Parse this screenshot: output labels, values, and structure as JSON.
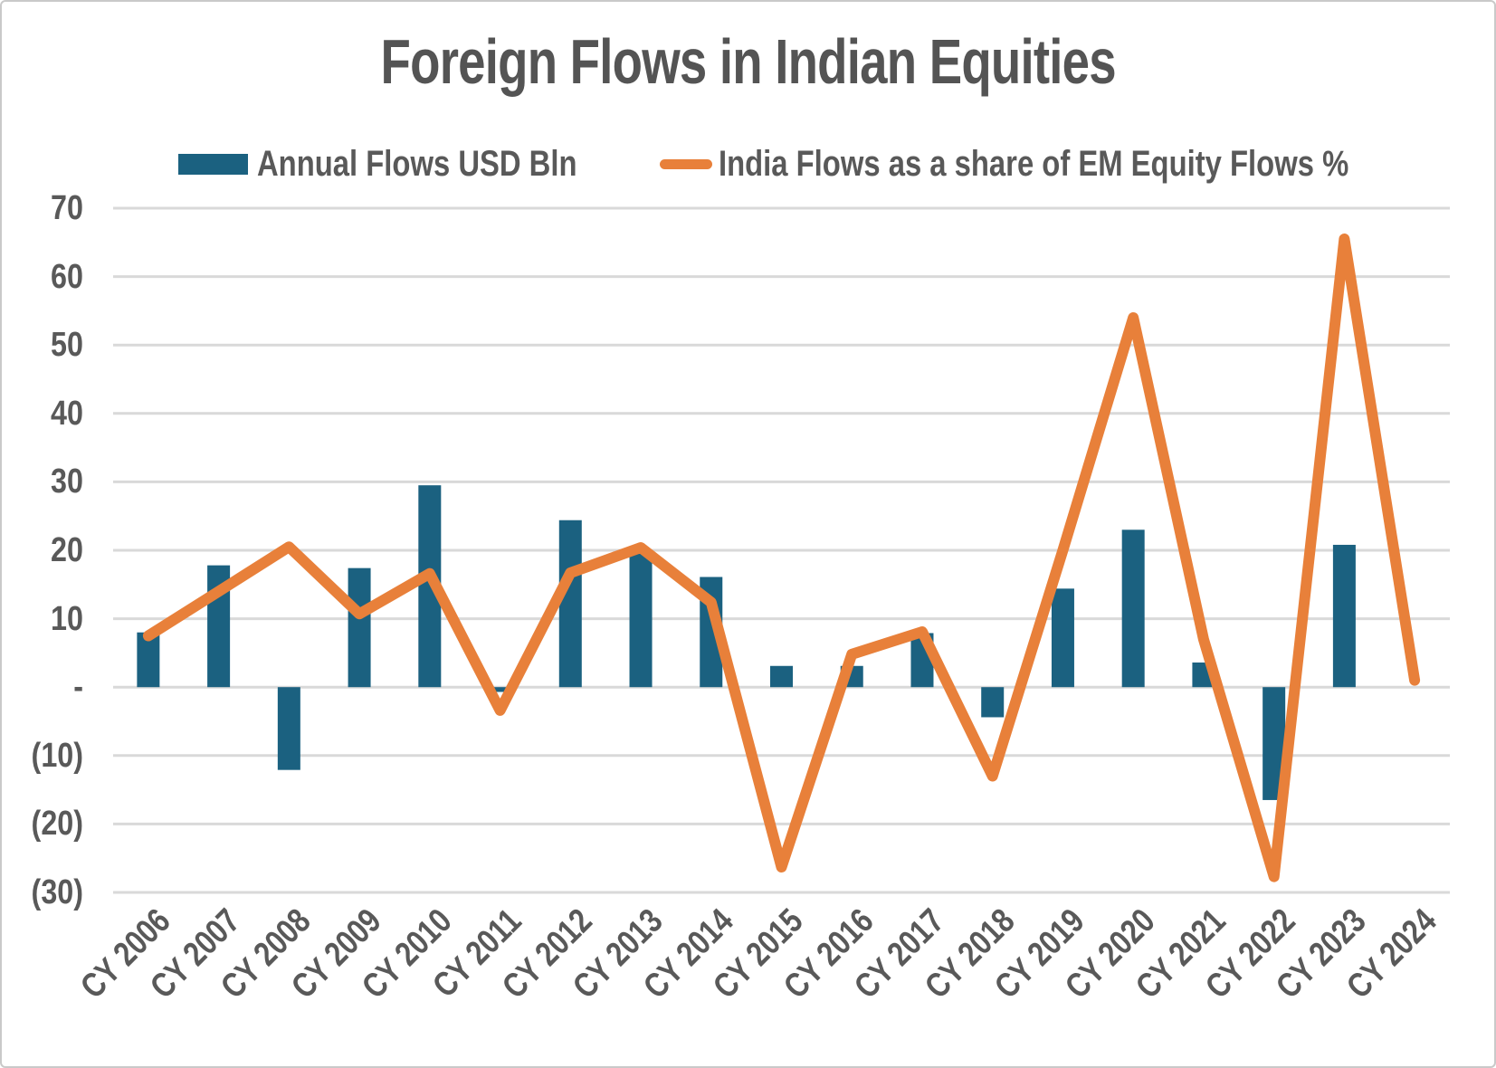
{
  "title": "Foreign Flows in Indian Equities",
  "legend": [
    {
      "label": "Annual Flows USD Bln",
      "swatch": "bar-swatch",
      "color": "#1B6180"
    },
    {
      "label": "India Flows as a share of EM Equity Flows %",
      "swatch": "line-swatch",
      "color": "#E8803A"
    }
  ],
  "colors": {
    "bar": "#1B6180",
    "line": "#E8803A",
    "text": "#595959",
    "title_text": "#545454",
    "gridline": "#D9D9D9",
    "frame_border": "#C9C9C9",
    "background": "#FFFFFF"
  },
  "chart_data": {
    "type": "bar",
    "subtype": "bar+line combo",
    "title": "Foreign Flows in Indian Equities",
    "categories": [
      "CY 2006",
      "CY 2007",
      "CY 2008",
      "CY 2009",
      "CY 2010",
      "CY 2011",
      "CY 2012",
      "CY 2013",
      "CY 2014",
      "CY 2015",
      "CY 2016",
      "CY 2017",
      "CY 2018",
      "CY 2019",
      "CY 2020",
      "CY 2021",
      "CY 2022",
      "CY 2023",
      "CY 2024"
    ],
    "series": [
      {
        "name": "Annual Flows USD Bln",
        "type": "bar",
        "color": "#1B6180",
        "values": [
          8.0,
          17.8,
          -12.1,
          17.4,
          29.5,
          -0.7,
          24.4,
          19.5,
          16.1,
          3.1,
          3.1,
          7.9,
          -4.4,
          14.4,
          23.0,
          3.6,
          -16.5,
          20.8,
          0
        ]
      },
      {
        "name": "India Flows as a share of EM Equity Flows %",
        "type": "line",
        "color": "#E8803A",
        "values": [
          7.5,
          14.0,
          20.5,
          10.7,
          16.6,
          -3.4,
          16.7,
          20.4,
          12.4,
          -26.3,
          4.8,
          8.1,
          -13.0,
          20.0,
          54.0,
          7.0,
          -27.7,
          65.5,
          1.0
        ]
      }
    ],
    "xlabel": "",
    "ylabel": "",
    "ylim": [
      -30,
      70
    ],
    "y_tick_interval": 10,
    "y_tick_labels": [
      "70",
      "60",
      "50",
      "40",
      "30",
      "20",
      "10",
      "-",
      "(10)",
      "(20)",
      "(30)"
    ],
    "y_tick_values": [
      70,
      60,
      50,
      40,
      30,
      20,
      10,
      0,
      -10,
      -20,
      -30
    ],
    "negative_number_format": "parentheses",
    "grid": "horizontal",
    "legend_position": "top"
  }
}
